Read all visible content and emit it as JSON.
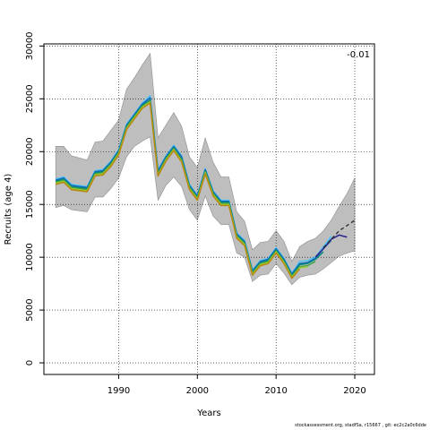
{
  "chart_data": {
    "type": "line",
    "xlabel": "Years",
    "ylabel": "Recruits (age 4)",
    "xlim": [
      1980.5,
      2022.5
    ],
    "ylim": [
      -1100,
      30200
    ],
    "x_ticks": [
      1990,
      2000,
      2010,
      2020
    ],
    "y_ticks": [
      0,
      5000,
      10000,
      15000,
      20000,
      25000,
      30000
    ],
    "grid": true,
    "annotation": "-0.01",
    "colors": {
      "band": "#bebebe",
      "band_edge": "#8c8c8c",
      "retro": [
        "#4fc3f7",
        "#1565c0",
        "#00897b",
        "#43a047",
        "#9acd32",
        "#b8860b"
      ],
      "terminal": "#2b2b8f",
      "forecast": "#333333"
    },
    "band": {
      "x": [
        1982,
        1983,
        1984,
        1985,
        1986,
        1987,
        1988,
        1989,
        1990,
        1991,
        1992,
        1993,
        1994,
        1995,
        1996,
        1997,
        1998,
        1999,
        2000,
        2001,
        2002,
        2003,
        2004,
        2005,
        2006,
        2007,
        2008,
        2009,
        2010,
        2011,
        2012,
        2013,
        2014,
        2015,
        2016,
        2017,
        2018,
        2019,
        2020
      ],
      "upper": [
        20500,
        20500,
        19600,
        19400,
        19200,
        20900,
        21000,
        22000,
        23000,
        25900,
        27000,
        28200,
        29300,
        21300,
        22500,
        23700,
        22400,
        19500,
        18500,
        21300,
        19000,
        17600,
        17600,
        14300,
        13400,
        10700,
        11400,
        11500,
        12500,
        11500,
        9600,
        11000,
        11500,
        11800,
        12500,
        13500,
        14800,
        16000,
        17500
      ],
      "lower": [
        14700,
        14900,
        14500,
        14400,
        14300,
        15700,
        15700,
        16500,
        17500,
        19500,
        20500,
        21000,
        21400,
        15400,
        16800,
        17600,
        16700,
        14500,
        13500,
        15800,
        13900,
        13100,
        13100,
        10400,
        10000,
        7700,
        8300,
        8400,
        9400,
        8500,
        7400,
        8100,
        8300,
        8400,
        8900,
        9500,
        10100,
        10400,
        10600
      ]
    },
    "series": [
      {
        "x": [
          1982,
          1983,
          1984,
          1985,
          1986,
          1987,
          1988,
          1989,
          1990,
          1991,
          1992,
          1993,
          1994,
          1995,
          1996,
          1997,
          1998,
          1999,
          2000,
          2001,
          2002,
          2003,
          2004,
          2005,
          2006,
          2007,
          2008,
          2009,
          2010,
          2011,
          2012,
          2013,
          2014,
          2015,
          2016,
          2017
        ],
        "values": [
          17400,
          17600,
          16900,
          16800,
          16700,
          18200,
          18300,
          19100,
          20200,
          22600,
          23600,
          24600,
          25300,
          18300,
          19600,
          20600,
          19600,
          16900,
          15900,
          18400,
          16300,
          15400,
          15400,
          12300,
          11600,
          8800,
          9700,
          9900,
          10900,
          9900,
          8500,
          9600,
          9700,
          10000,
          11000,
          12000
        ]
      },
      {
        "x": [
          1982,
          1983,
          1984,
          1985,
          1986,
          1987,
          1988,
          1989,
          1990,
          1991,
          1992,
          1993,
          1994,
          1995,
          1996,
          1997,
          1998,
          1999,
          2000,
          2001,
          2002,
          2003,
          2004,
          2005,
          2006,
          2007,
          2008,
          2009,
          2010,
          2011,
          2012,
          2013,
          2014,
          2015,
          2016,
          2017
        ],
        "values": [
          17300,
          17500,
          16800,
          16700,
          16600,
          18100,
          18200,
          19000,
          20100,
          22500,
          23500,
          24500,
          25100,
          18200,
          19500,
          20500,
          19500,
          16800,
          15800,
          18300,
          16200,
          15300,
          15300,
          12200,
          11500,
          8700,
          9600,
          9800,
          10800,
          9800,
          8400,
          9400,
          9500,
          9900,
          10800,
          11600
        ]
      },
      {
        "x": [
          1982,
          1983,
          1984,
          1985,
          1986,
          1987,
          1988,
          1989,
          1990,
          1991,
          1992,
          1993,
          1994,
          1995,
          1996,
          1997,
          1998,
          1999,
          2000,
          2001,
          2002,
          2003,
          2004,
          2005,
          2006,
          2007,
          2008,
          2009,
          2010,
          2011,
          2012,
          2013,
          2014,
          2015,
          2016
        ],
        "values": [
          17200,
          17400,
          16700,
          16600,
          16500,
          18000,
          18100,
          18900,
          20000,
          22400,
          23400,
          24400,
          24900,
          18000,
          19400,
          20400,
          19300,
          16700,
          15700,
          18200,
          16100,
          15200,
          15200,
          12100,
          11400,
          8600,
          9500,
          9700,
          10700,
          9700,
          8300,
          9300,
          9400,
          9800,
          10500
        ]
      },
      {
        "x": [
          1982,
          1983,
          1984,
          1985,
          1986,
          1987,
          1988,
          1989,
          1990,
          1991,
          1992,
          1993,
          1994,
          1995,
          1996,
          1997,
          1998,
          1999,
          2000,
          2001,
          2002,
          2003,
          2004,
          2005,
          2006,
          2007,
          2008,
          2009,
          2010,
          2011,
          2012,
          2013,
          2014,
          2015
        ],
        "values": [
          17100,
          17300,
          16600,
          16500,
          16400,
          17900,
          18000,
          18800,
          19900,
          22300,
          23300,
          24300,
          24800,
          17900,
          19300,
          20300,
          19200,
          16600,
          15600,
          18100,
          16000,
          15100,
          15100,
          12000,
          11300,
          8500,
          9400,
          9600,
          10600,
          9600,
          8200,
          9100,
          9200,
          9600
        ]
      },
      {
        "x": [
          1982,
          1983,
          1984,
          1985,
          1986,
          1987,
          1988,
          1989,
          1990,
          1991,
          1992,
          1993,
          1994,
          1995,
          1996,
          1997,
          1998,
          1999,
          2000,
          2001,
          2002,
          2003,
          2004,
          2005,
          2006,
          2007,
          2008,
          2009,
          2010,
          2011,
          2012,
          2013,
          2014
        ],
        "values": [
          17000,
          17200,
          16500,
          16400,
          16300,
          17800,
          17900,
          18700,
          19800,
          22200,
          23200,
          24200,
          24700,
          17800,
          19200,
          20200,
          19100,
          16500,
          15500,
          18000,
          15900,
          15000,
          15000,
          11900,
          11200,
          8400,
          9300,
          9500,
          10500,
          9500,
          8100,
          9000,
          9100
        ]
      },
      {
        "x": [
          1982,
          1983,
          1984,
          1985,
          1986,
          1987,
          1988,
          1989,
          1990,
          1991,
          1992,
          1993,
          1994,
          1995,
          1996,
          1997,
          1998,
          1999,
          2000,
          2001,
          2002,
          2003,
          2004,
          2005,
          2006,
          2007,
          2008,
          2009,
          2010,
          2011,
          2012,
          2013
        ],
        "values": [
          16900,
          17100,
          16400,
          16300,
          16200,
          17700,
          17800,
          18600,
          19700,
          22100,
          23100,
          24100,
          24600,
          17700,
          19100,
          20100,
          19000,
          16400,
          15400,
          17900,
          15800,
          14900,
          14900,
          11800,
          11100,
          8300,
          9200,
          9400,
          10400,
          9400,
          8000,
          8900
        ]
      }
    ],
    "terminal": {
      "x": [
        2015,
        2016,
        2017,
        2018,
        2019
      ],
      "values": [
        10000,
        10800,
        11700,
        12100,
        11900
      ]
    },
    "forecast": {
      "x": [
        2016,
        2017,
        2018,
        2019,
        2020
      ],
      "values": [
        10900,
        11700,
        12500,
        13000,
        13500
      ]
    }
  },
  "footer": "stockassessment.org, stadfSa, r15667 , git: ec2c2a0c6dde"
}
